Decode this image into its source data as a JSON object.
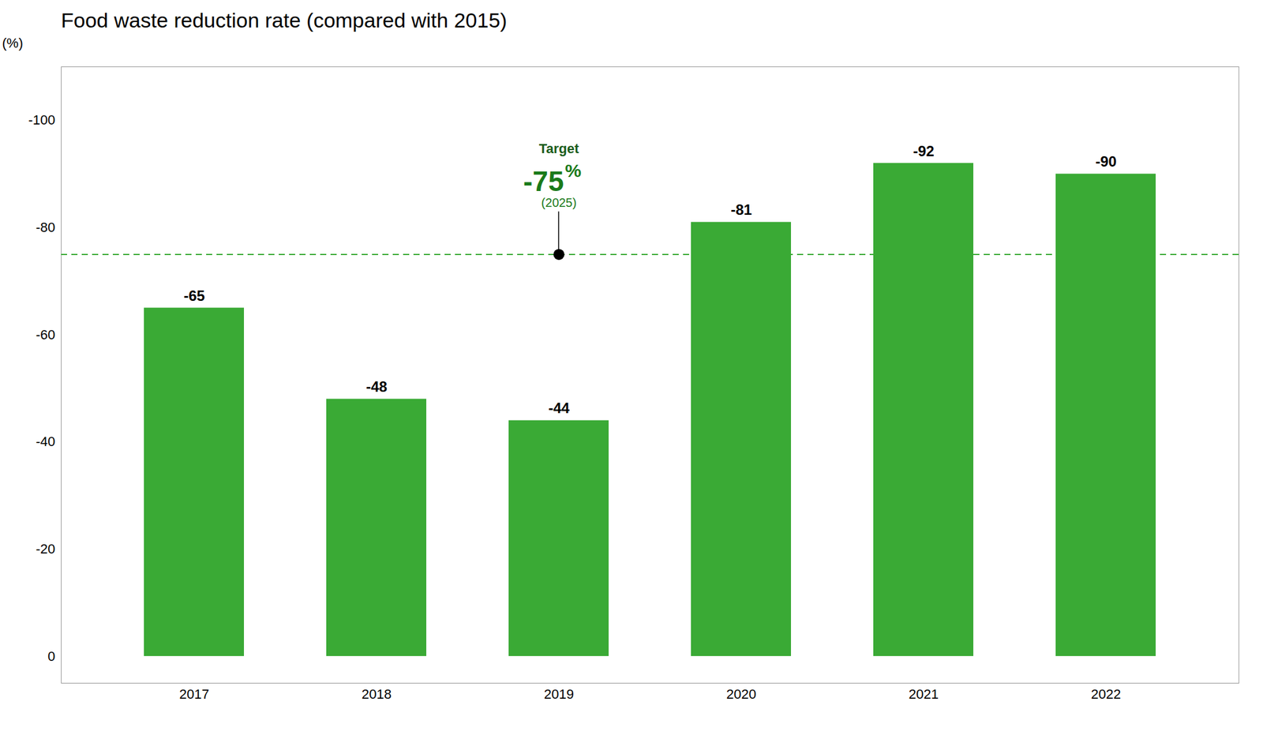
{
  "chart_data": {
    "type": "bar",
    "title": "Food waste reduction rate (compared with 2015)",
    "ylabel": "(%)",
    "categories": [
      "2017",
      "2018",
      "2019",
      "2020",
      "2021",
      "2022"
    ],
    "values": [
      -65,
      -48,
      -44,
      -81,
      -92,
      -90
    ],
    "color": "#3aaa35",
    "ylim": [
      5,
      -110
    ],
    "yticks": [
      -100,
      -80,
      -60,
      -40,
      -20,
      0
    ],
    "grid": false,
    "data_labels": true,
    "reference_line": {
      "value": -75,
      "color": "#3aaa35",
      "line_style": "dashed"
    },
    "annotations": [
      {
        "category": "2019",
        "value": -75,
        "marker": "circle",
        "color": "#000000",
        "texts": [
          {
            "text": "Target",
            "color": "#1a5c1a"
          },
          {
            "text": "-75",
            "color": "#1a7a1a"
          },
          {
            "text": "%",
            "color": "#1a7a1a"
          },
          {
            "text": "(2025)",
            "color": "#1a7a1a"
          }
        ]
      }
    ]
  }
}
